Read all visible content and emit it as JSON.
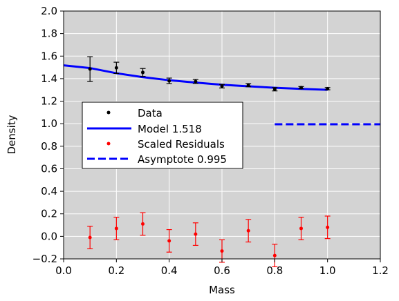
{
  "chart_data": {
    "type": "scatter",
    "title": "",
    "xlabel": "Mass",
    "ylabel": "Density",
    "xlim": [
      0.0,
      1.2
    ],
    "ylim": [
      -0.2,
      2.0
    ],
    "xticks": [
      "0.0",
      "0.2",
      "0.4",
      "0.6",
      "0.8",
      "1.0",
      "1.2"
    ],
    "yticks": [
      "−0.2",
      "0.0",
      "0.2",
      "0.4",
      "0.6",
      "0.8",
      "1.0",
      "1.2",
      "1.4",
      "1.6",
      "1.8",
      "2.0"
    ],
    "grid": true,
    "background": "#d3d3d3",
    "legend_placement": "center-left",
    "series": [
      {
        "name": "Data",
        "kind": "errorbar",
        "color": "#000000",
        "x": [
          0.1,
          0.2,
          0.3,
          0.4,
          0.5,
          0.6,
          0.7,
          0.8,
          0.9,
          1.0
        ],
        "y": [
          1.485,
          1.496,
          1.455,
          1.38,
          1.375,
          1.333,
          1.342,
          1.306,
          1.32,
          1.311
        ],
        "err": [
          0.11,
          0.05,
          0.035,
          0.025,
          0.018,
          0.016,
          0.014,
          0.015,
          0.01,
          0.01
        ]
      },
      {
        "name": "Model 1.518",
        "kind": "line",
        "color": "#0000ff",
        "x": [
          0.0,
          0.1,
          0.2,
          0.3,
          0.4,
          0.5,
          0.6,
          0.7,
          0.8,
          0.9,
          1.0
        ],
        "y": [
          1.518,
          1.494,
          1.448,
          1.413,
          1.386,
          1.365,
          1.346,
          1.332,
          1.319,
          1.309,
          1.301
        ]
      },
      {
        "name": "Scaled Residuals",
        "kind": "errorbar",
        "color": "#ff0000",
        "x": [
          0.1,
          0.2,
          0.3,
          0.4,
          0.5,
          0.6,
          0.7,
          0.8,
          0.9,
          1.0
        ],
        "y": [
          -0.01,
          0.07,
          0.11,
          -0.04,
          0.02,
          -0.13,
          0.05,
          -0.17,
          0.07,
          0.08
        ],
        "err": [
          0.1,
          0.1,
          0.1,
          0.1,
          0.1,
          0.1,
          0.1,
          0.1,
          0.1,
          0.1
        ]
      },
      {
        "name": "Asymptote 0.995",
        "kind": "dashed-line",
        "color": "#0000ff",
        "x": [
          0.8,
          1.2
        ],
        "y": [
          0.995,
          0.995
        ]
      }
    ]
  }
}
